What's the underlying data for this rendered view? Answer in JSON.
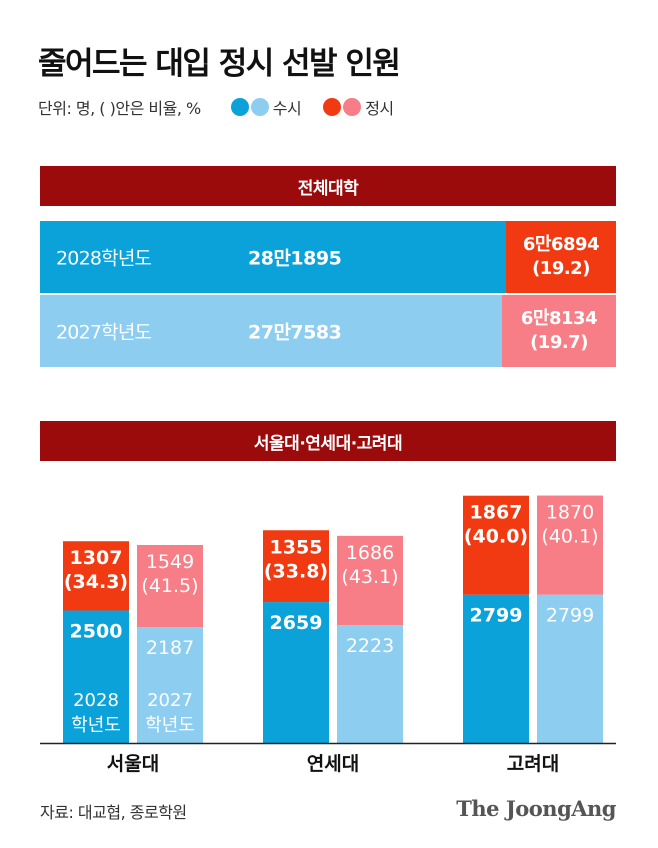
{
  "title": "줄어드는 대입 정시 선발 인원",
  "unit": "단위: 명, ( )안은 비율, %",
  "legend": {
    "susi_label": "수시",
    "jeongsi_label": "정시"
  },
  "colors": {
    "susi_2028": "#0aa2d9",
    "susi_2027": "#8dcdf0",
    "jeongsi_2028": "#f23a12",
    "jeongsi_2027": "#f77e86",
    "header": "#9c0b0b"
  },
  "section1": {
    "title": "전체대학"
  },
  "section2": {
    "title": "서울대·연세대·고려대"
  },
  "source": "자료: 대교협, 종로학원",
  "logo": "The JoongAng",
  "chart_data": [
    {
      "type": "bar",
      "orientation": "horizontal",
      "stacked": true,
      "title": "전체대학",
      "rows": [
        {
          "label": "2028학년도",
          "susi": 281895,
          "susi_text": "28만1895",
          "jeongsi": 66894,
          "jeongsi_text": "6만6894",
          "jeongsi_pct": "(19.2)"
        },
        {
          "label": "2027학년도",
          "susi": 277583,
          "susi_text": "27만7583",
          "jeongsi": 68134,
          "jeongsi_text": "6만8134",
          "jeongsi_pct": "(19.7)"
        }
      ]
    },
    {
      "type": "bar",
      "stacked": true,
      "title": "서울대·연세대·고려대",
      "categories": [
        "서울대",
        "연세대",
        "고려대"
      ],
      "year_labels": {
        "2028": [
          "2028",
          "학년도"
        ],
        "2027": [
          "2027",
          "학년도"
        ]
      },
      "series": [
        {
          "year": "2028",
          "susi": [
            2500,
            2659,
            2799
          ],
          "jeongsi": [
            1307,
            1355,
            1867
          ],
          "jeongsi_pct": [
            "(34.3)",
            "(33.8)",
            "(40.0)"
          ]
        },
        {
          "year": "2027",
          "susi": [
            2187,
            2223,
            2799
          ],
          "jeongsi": [
            1549,
            1686,
            1870
          ],
          "jeongsi_pct": [
            "(41.5)",
            "(43.1)",
            "(40.1)"
          ]
        }
      ]
    }
  ]
}
